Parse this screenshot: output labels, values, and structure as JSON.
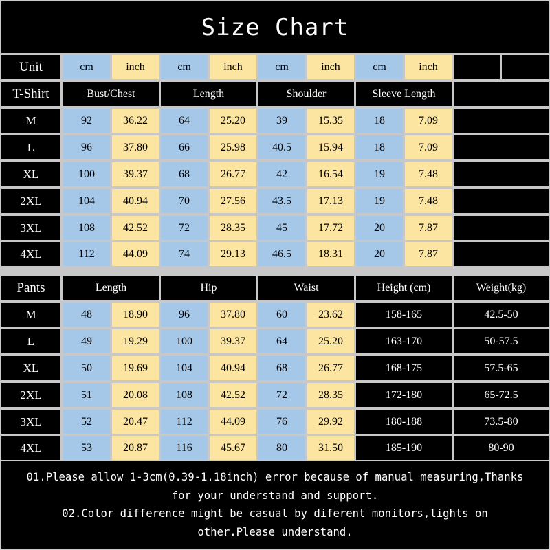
{
  "title": "Size Chart",
  "unit_row": {
    "label": "Unit",
    "units": [
      "cm",
      "inch",
      "cm",
      "inch",
      "cm",
      "inch",
      "cm",
      "inch"
    ]
  },
  "tshirt": {
    "label": "T-Shirt",
    "headers": [
      "Bust/Chest",
      "Length",
      "Shoulder",
      "Sleeve Length"
    ],
    "rows": [
      {
        "size": "M",
        "values": [
          "92",
          "36.22",
          "64",
          "25.20",
          "39",
          "15.35",
          "18",
          "7.09"
        ]
      },
      {
        "size": "L",
        "values": [
          "96",
          "37.80",
          "66",
          "25.98",
          "40.5",
          "15.94",
          "18",
          "7.09"
        ]
      },
      {
        "size": "XL",
        "values": [
          "100",
          "39.37",
          "68",
          "26.77",
          "42",
          "16.54",
          "19",
          "7.48"
        ]
      },
      {
        "size": "2XL",
        "values": [
          "104",
          "40.94",
          "70",
          "27.56",
          "43.5",
          "17.13",
          "19",
          "7.48"
        ]
      },
      {
        "size": "3XL",
        "values": [
          "108",
          "42.52",
          "72",
          "28.35",
          "45",
          "17.72",
          "20",
          "7.87"
        ]
      },
      {
        "size": "4XL",
        "values": [
          "112",
          "44.09",
          "74",
          "29.13",
          "46.5",
          "18.31",
          "20",
          "7.87"
        ]
      }
    ]
  },
  "pants": {
    "label": "Pants",
    "headers": [
      "Length",
      "Hip",
      "Waist",
      "Height (cm)",
      "Weight(kg)"
    ],
    "rows": [
      {
        "size": "M",
        "values": [
          "48",
          "18.90",
          "96",
          "37.80",
          "60",
          "23.62",
          "158-165",
          "42.5-50"
        ]
      },
      {
        "size": "L",
        "values": [
          "49",
          "19.29",
          "100",
          "39.37",
          "64",
          "25.20",
          "163-170",
          "50-57.5"
        ]
      },
      {
        "size": "XL",
        "values": [
          "50",
          "19.69",
          "104",
          "40.94",
          "68",
          "26.77",
          "168-175",
          "57.5-65"
        ]
      },
      {
        "size": "2XL",
        "values": [
          "51",
          "20.08",
          "108",
          "42.52",
          "72",
          "28.35",
          "172-180",
          "65-72.5"
        ]
      },
      {
        "size": "3XL",
        "values": [
          "52",
          "20.47",
          "112",
          "44.09",
          "76",
          "29.92",
          "180-188",
          "73.5-80"
        ]
      },
      {
        "size": "4XL",
        "values": [
          "53",
          "20.87",
          "116",
          "45.67",
          "80",
          "31.50",
          "185-190",
          "80-90"
        ]
      }
    ]
  },
  "notes": {
    "line1": "01.Please allow 1-3cm(0.39-1.18inch) error because of manual measuring,Thanks",
    "line2": "for your understand and support.",
    "line3": "02.Color difference might be casual by diferent monitors,lights on",
    "line4": "other.Please understand."
  }
}
